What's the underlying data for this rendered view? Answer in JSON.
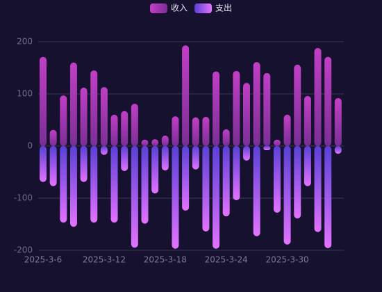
{
  "chart_data": {
    "type": "bar",
    "categories": [
      "2025-3-6",
      null,
      null,
      null,
      null,
      null,
      "2025-3-12",
      null,
      null,
      null,
      null,
      null,
      "2025-3-18",
      null,
      null,
      null,
      null,
      null,
      "2025-3-24",
      null,
      null,
      null,
      null,
      null,
      "2025-3-30",
      null,
      null,
      null,
      null,
      null
    ],
    "series": [
      {
        "name": "收入",
        "color": [
          "#c13fc6",
          "#7b2e95"
        ],
        "values": [
          171,
          31,
          97,
          160,
          112,
          145,
          113,
          60,
          67,
          81,
          12,
          13,
          20,
          57,
          193,
          55,
          56,
          143,
          32,
          144,
          121,
          161,
          140,
          12,
          60,
          156,
          96,
          188,
          171,
          92
        ]
      },
      {
        "name": "支出",
        "color": [
          "#5a40d6",
          "#e472ff"
        ],
        "values": [
          -69,
          -77,
          -147,
          -155,
          -69,
          -147,
          -17,
          -147,
          -48,
          -195,
          -149,
          -91,
          -47,
          -197,
          -124,
          -45,
          -164,
          -197,
          -135,
          -104,
          -28,
          -173,
          -8,
          -128,
          -189,
          -139,
          -77,
          -165,
          -196,
          -15
        ]
      }
    ],
    "ylim": [
      -200,
      200
    ],
    "yticks": [
      200,
      100,
      0,
      -100,
      -200
    ],
    "grid": true,
    "legend": "top"
  }
}
